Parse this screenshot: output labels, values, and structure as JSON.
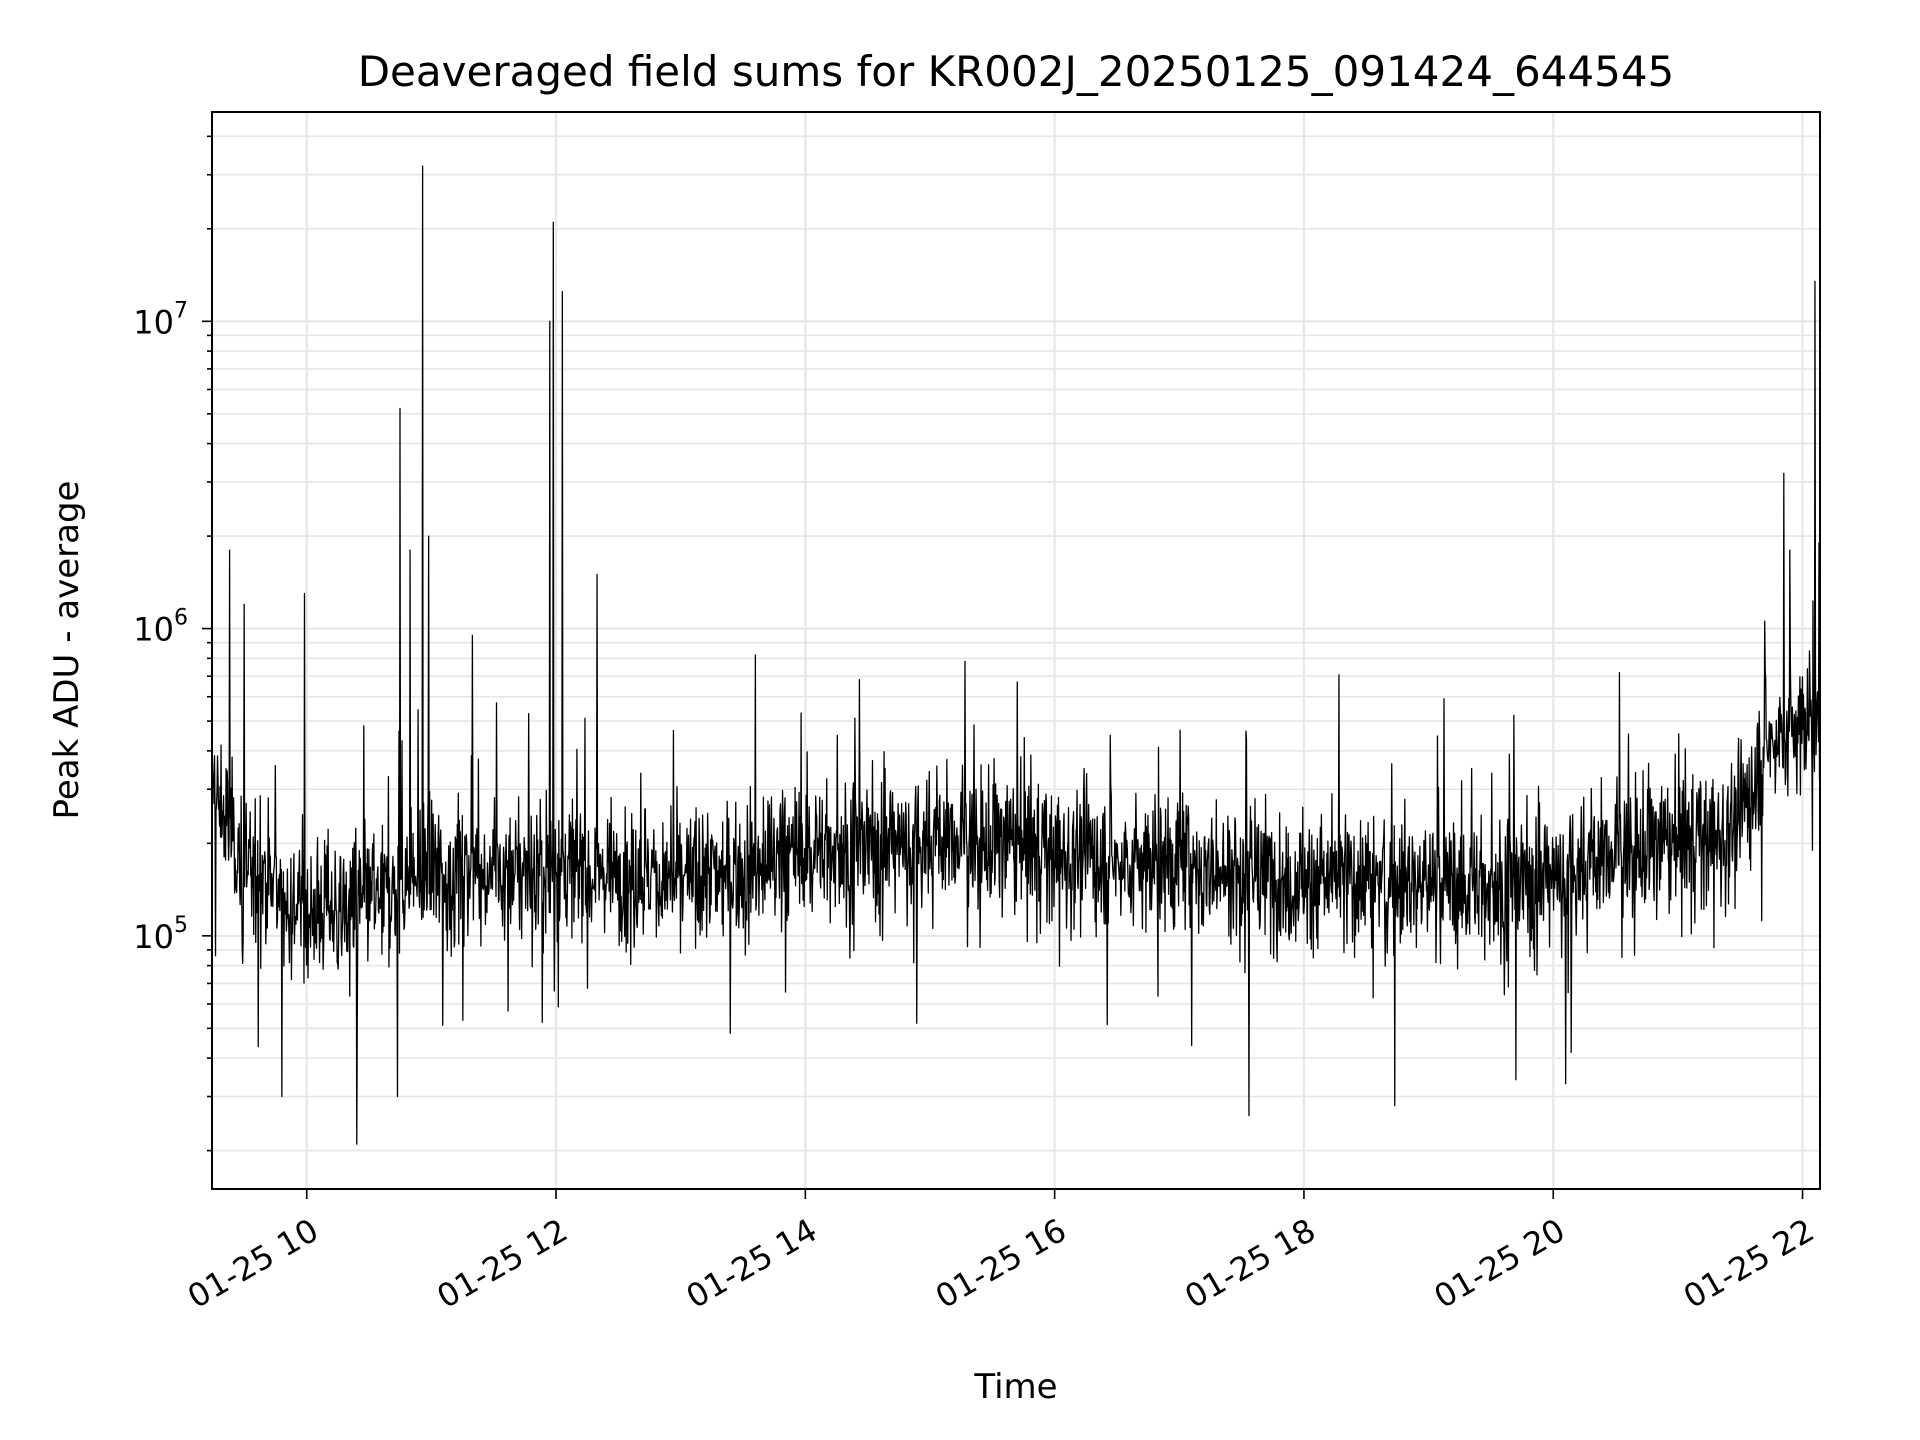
{
  "chart_data": {
    "type": "line",
    "title": "Deaveraged field sums for KR002J_20250125_091424_644545",
    "xlabel": "Time",
    "ylabel": "Peak ADU - average",
    "x_axis_type": "time",
    "x_range": [
      "2025-01-25 09:14",
      "2025-01-25 22:08"
    ],
    "x_tick_labels": [
      "01-25 10",
      "01-25 12",
      "01-25 14",
      "01-25 16",
      "01-25 18",
      "01-25 20",
      "01-25 22"
    ],
    "x_tick_hours": [
      10,
      12,
      14,
      16,
      18,
      20,
      22
    ],
    "y_scale": "log",
    "ylim": [
      15000,
      48000000
    ],
    "y_major_ticks": [
      {
        "value": 100000,
        "base": "10",
        "exp": "5"
      },
      {
        "value": 1000000,
        "base": "10",
        "exp": "6"
      },
      {
        "value": 10000000,
        "base": "10",
        "exp": "7"
      }
    ],
    "grid": true,
    "line_color": "#000000",
    "grid_color": "#e6e6e6",
    "series": [
      {
        "x_hours": [
          9.24,
          9.5,
          10.0,
          10.5,
          11.0,
          11.5,
          12.0,
          12.5,
          13.0,
          13.5,
          14.0,
          14.5,
          15.0,
          15.5,
          16.0,
          16.5,
          17.0,
          17.5,
          18.0,
          18.5,
          19.0,
          19.5,
          20.0,
          20.5,
          21.0,
          21.5,
          21.7,
          22.0,
          22.14
        ],
        "values": [
          300000,
          170000,
          120000,
          130000,
          160000,
          160000,
          165000,
          165000,
          150000,
          165000,
          190000,
          195000,
          205000,
          200000,
          190000,
          175000,
          165000,
          160000,
          150000,
          155000,
          150000,
          145000,
          155000,
          185000,
          200000,
          230000,
          420000,
          480000,
          520000
        ],
        "spikes": [
          {
            "x_hours": 9.38,
            "value": 1800000
          },
          {
            "x_hours": 9.5,
            "value": 1200000
          },
          {
            "x_hours": 9.98,
            "value": 1300000
          },
          {
            "x_hours": 10.75,
            "value": 5200000
          },
          {
            "x_hours": 10.83,
            "value": 1800000
          },
          {
            "x_hours": 10.93,
            "value": 32000000
          },
          {
            "x_hours": 10.98,
            "value": 2000000
          },
          {
            "x_hours": 11.33,
            "value": 950000
          },
          {
            "x_hours": 11.95,
            "value": 10000000
          },
          {
            "x_hours": 11.98,
            "value": 21000000
          },
          {
            "x_hours": 12.05,
            "value": 12500000
          },
          {
            "x_hours": 12.33,
            "value": 1500000
          },
          {
            "x_hours": 13.6,
            "value": 820000
          },
          {
            "x_hours": 15.7,
            "value": 670000
          },
          {
            "x_hours": 21.85,
            "value": 3200000
          },
          {
            "x_hours": 21.9,
            "value": 1800000
          },
          {
            "x_hours": 22.1,
            "value": 13500000
          },
          {
            "x_hours": 22.13,
            "value": 1900000
          }
        ],
        "dips": [
          {
            "x_hours": 9.8,
            "value": 30000
          },
          {
            "x_hours": 10.4,
            "value": 21000
          },
          {
            "x_hours": 10.73,
            "value": 30000
          },
          {
            "x_hours": 17.56,
            "value": 26000
          },
          {
            "x_hours": 18.73,
            "value": 28000
          },
          {
            "x_hours": 19.7,
            "value": 34000
          },
          {
            "x_hours": 20.1,
            "value": 33000
          }
        ]
      }
    ]
  }
}
